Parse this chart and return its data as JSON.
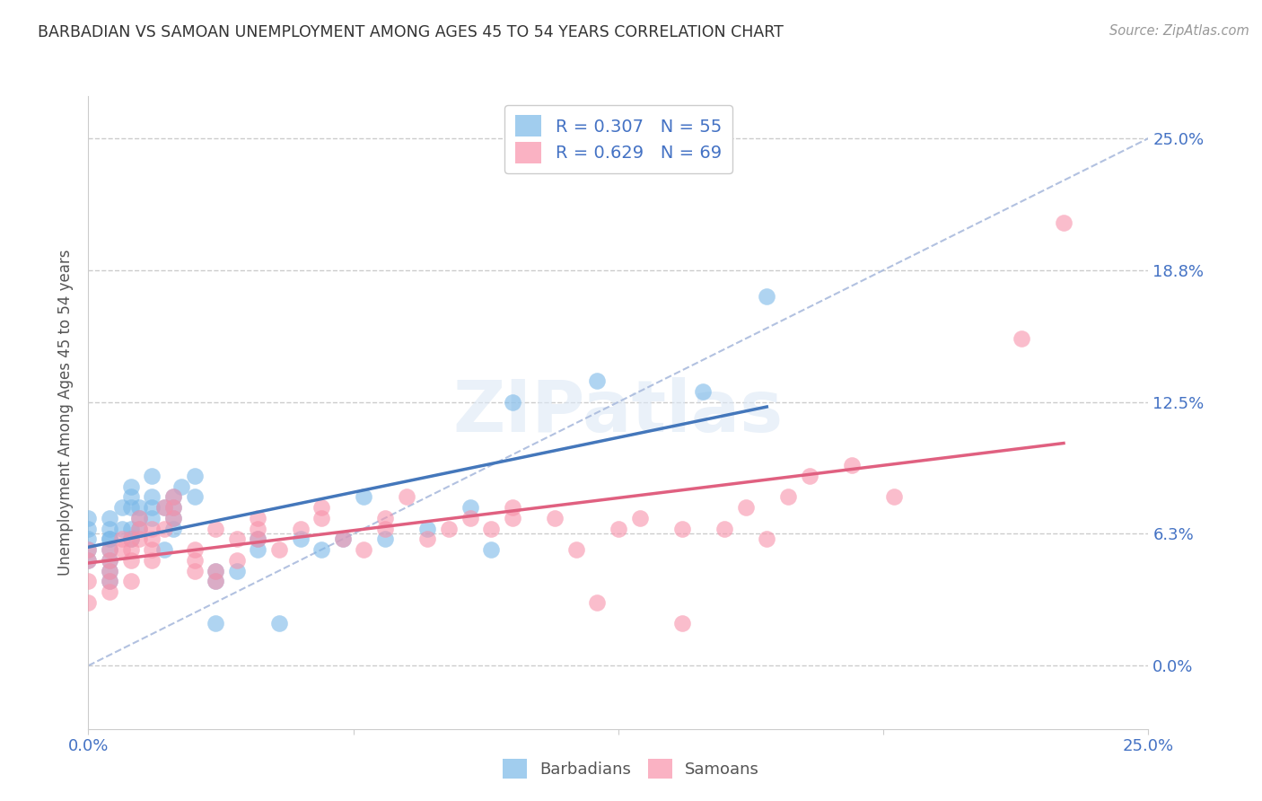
{
  "title": "BARBADIAN VS SAMOAN UNEMPLOYMENT AMONG AGES 45 TO 54 YEARS CORRELATION CHART",
  "source": "Source: ZipAtlas.com",
  "ylabel": "Unemployment Among Ages 45 to 54 years",
  "barbadian_color": "#7ab8e8",
  "samoan_color": "#f892aa",
  "line_blue": "#4477bb",
  "line_pink": "#e06080",
  "diag_color": "#aabbdd",
  "barbadian_R": 0.307,
  "barbadian_N": 55,
  "samoan_R": 0.629,
  "samoan_N": 69,
  "background_color": "#ffffff",
  "grid_color": "#cccccc",
  "xlim": [
    0.0,
    0.25
  ],
  "ylim": [
    -0.03,
    0.27
  ],
  "ytick_positions": [
    0.0,
    0.0625,
    0.125,
    0.1875,
    0.25
  ],
  "ytick_labels": [
    "0.0%",
    "6.3%",
    "12.5%",
    "18.8%",
    "25.0%"
  ],
  "xtick_positions": [
    0.0,
    0.0625,
    0.125,
    0.1875,
    0.25
  ],
  "xtick_labels": [
    "0.0%",
    "",
    "",
    "",
    "25.0%"
  ],
  "barbadian_x": [
    0.0,
    0.0,
    0.0,
    0.0,
    0.0,
    0.005,
    0.005,
    0.005,
    0.005,
    0.005,
    0.005,
    0.005,
    0.005,
    0.008,
    0.008,
    0.01,
    0.01,
    0.01,
    0.01,
    0.01,
    0.012,
    0.012,
    0.012,
    0.015,
    0.015,
    0.015,
    0.015,
    0.018,
    0.018,
    0.02,
    0.02,
    0.02,
    0.02,
    0.022,
    0.025,
    0.025,
    0.03,
    0.03,
    0.03,
    0.035,
    0.04,
    0.04,
    0.045,
    0.05,
    0.055,
    0.06,
    0.065,
    0.07,
    0.08,
    0.09,
    0.095,
    0.1,
    0.12,
    0.145,
    0.16
  ],
  "barbadian_y": [
    0.06,
    0.065,
    0.07,
    0.05,
    0.055,
    0.055,
    0.06,
    0.065,
    0.07,
    0.06,
    0.05,
    0.045,
    0.04,
    0.065,
    0.075,
    0.06,
    0.065,
    0.075,
    0.08,
    0.085,
    0.065,
    0.07,
    0.075,
    0.07,
    0.075,
    0.08,
    0.09,
    0.055,
    0.075,
    0.065,
    0.07,
    0.075,
    0.08,
    0.085,
    0.08,
    0.09,
    0.045,
    0.04,
    0.02,
    0.045,
    0.06,
    0.055,
    0.02,
    0.06,
    0.055,
    0.06,
    0.08,
    0.06,
    0.065,
    0.075,
    0.055,
    0.125,
    0.135,
    0.13,
    0.175
  ],
  "samoan_x": [
    0.0,
    0.0,
    0.0,
    0.0,
    0.005,
    0.005,
    0.005,
    0.005,
    0.005,
    0.008,
    0.008,
    0.01,
    0.01,
    0.01,
    0.01,
    0.012,
    0.012,
    0.012,
    0.015,
    0.015,
    0.015,
    0.015,
    0.018,
    0.018,
    0.02,
    0.02,
    0.02,
    0.025,
    0.025,
    0.025,
    0.03,
    0.03,
    0.03,
    0.035,
    0.035,
    0.04,
    0.04,
    0.04,
    0.045,
    0.05,
    0.055,
    0.055,
    0.06,
    0.065,
    0.07,
    0.07,
    0.075,
    0.08,
    0.085,
    0.09,
    0.095,
    0.1,
    0.1,
    0.11,
    0.115,
    0.12,
    0.125,
    0.13,
    0.14,
    0.14,
    0.15,
    0.155,
    0.16,
    0.165,
    0.17,
    0.18,
    0.19,
    0.22,
    0.23
  ],
  "samoan_y": [
    0.05,
    0.055,
    0.04,
    0.03,
    0.055,
    0.04,
    0.045,
    0.05,
    0.035,
    0.055,
    0.06,
    0.04,
    0.05,
    0.055,
    0.06,
    0.06,
    0.065,
    0.07,
    0.05,
    0.055,
    0.06,
    0.065,
    0.065,
    0.075,
    0.07,
    0.075,
    0.08,
    0.045,
    0.05,
    0.055,
    0.04,
    0.045,
    0.065,
    0.05,
    0.06,
    0.06,
    0.065,
    0.07,
    0.055,
    0.065,
    0.07,
    0.075,
    0.06,
    0.055,
    0.065,
    0.07,
    0.08,
    0.06,
    0.065,
    0.07,
    0.065,
    0.07,
    0.075,
    0.07,
    0.055,
    0.03,
    0.065,
    0.07,
    0.065,
    0.02,
    0.065,
    0.075,
    0.06,
    0.08,
    0.09,
    0.095,
    0.08,
    0.155,
    0.21
  ]
}
